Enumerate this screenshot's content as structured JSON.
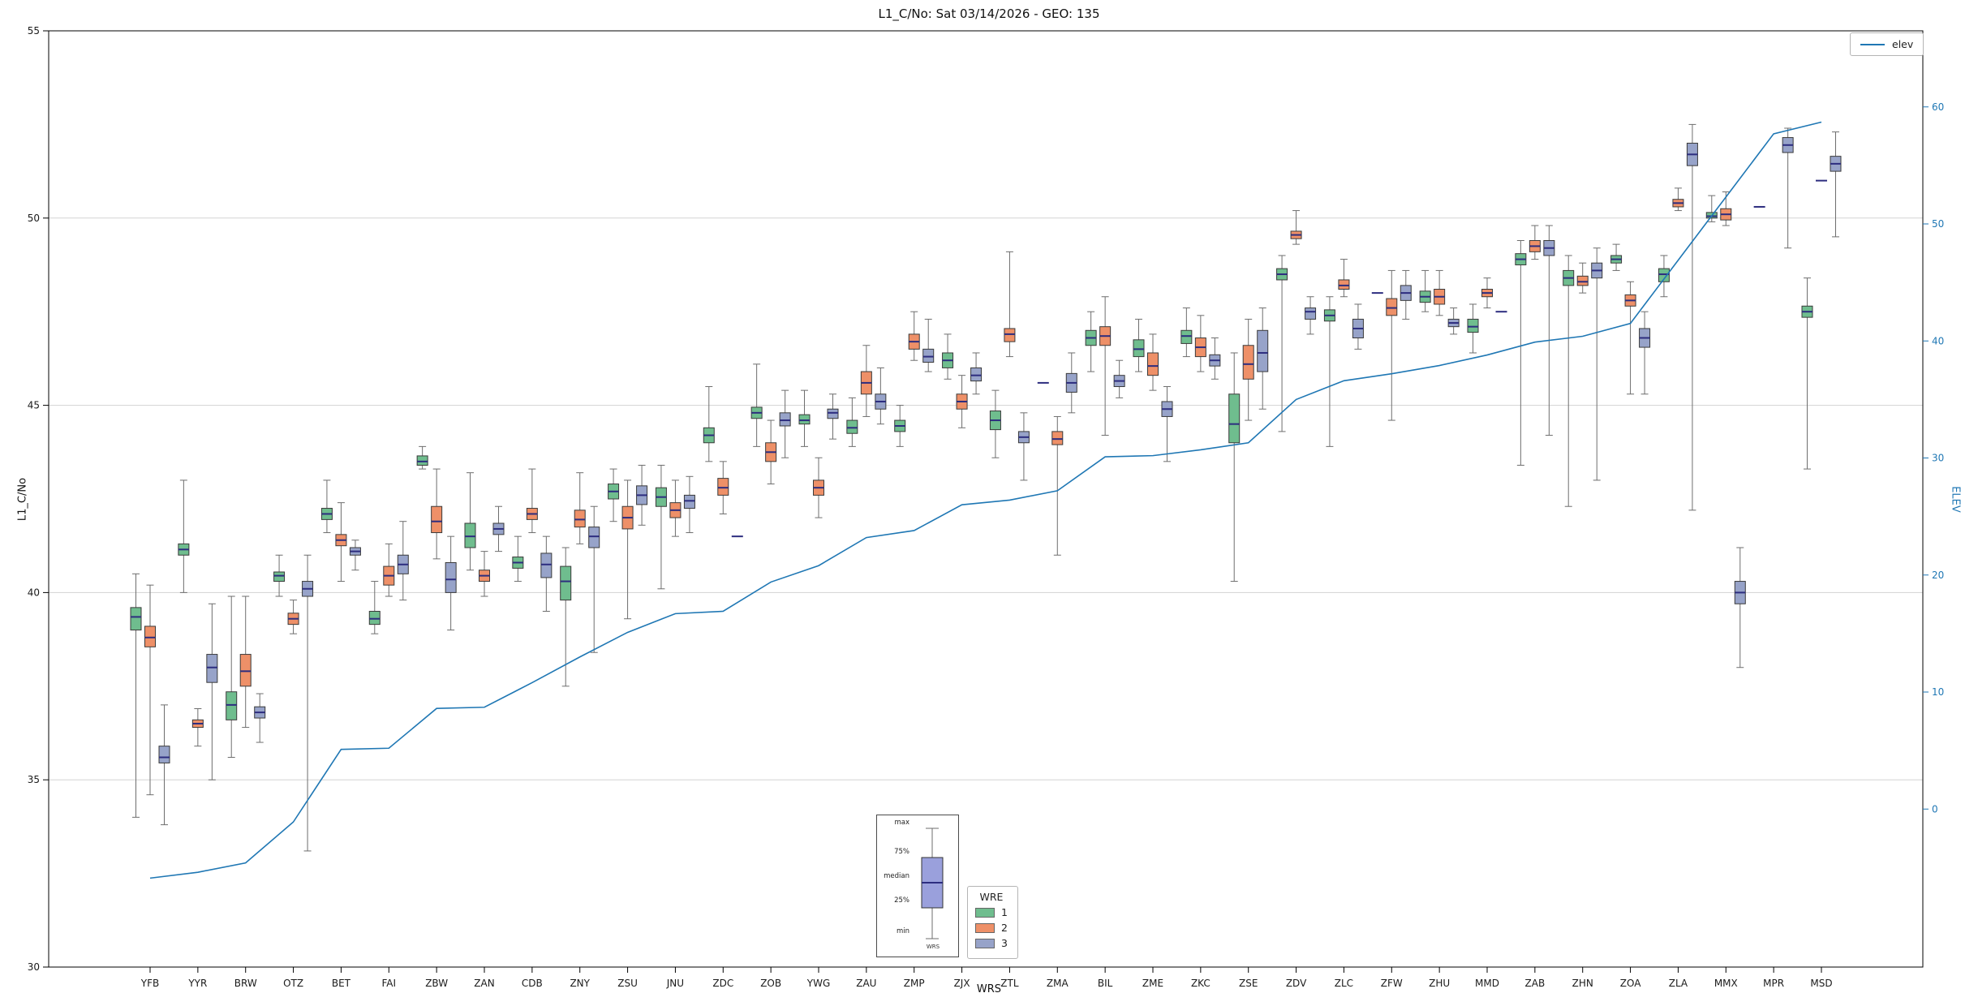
{
  "chart_data": {
    "type": "boxplot+line",
    "title": "L1_C/No: Sat 03/14/2026 - GEO: 135",
    "xlabel": "WRS",
    "ylabel_left": "L1_C/No",
    "ylabel_right": "ELEV",
    "ylim_left": [
      30,
      55
    ],
    "ylim_right": [
      -13.5,
      66.5
    ],
    "yticks_left": [
      30,
      35,
      40,
      45,
      50,
      55
    ],
    "yticks_right": [
      0,
      10,
      20,
      30,
      40,
      50,
      60
    ],
    "grid": "horizontal",
    "line_legend_label": "elev",
    "legend_title": "WRE",
    "elev_color": "#1f77b4",
    "median_color": "#2d2d7f",
    "whisker_color": "#6e6e6e",
    "box_edge_color": "#3a3a3a",
    "groups": [
      {
        "name": "1",
        "color": "#6fbd8e"
      },
      {
        "name": "2",
        "color": "#ee9068"
      },
      {
        "name": "3",
        "color": "#97a3c9"
      }
    ],
    "stations": [
      {
        "name": "YFB",
        "elev": -5.9,
        "boxes": [
          [
            34.0,
            39.0,
            39.35,
            39.6,
            40.5
          ],
          [
            34.6,
            38.55,
            38.8,
            39.1,
            40.2
          ],
          [
            33.8,
            35.45,
            35.6,
            35.9,
            37.0
          ]
        ]
      },
      {
        "name": "YYR",
        "elev": -5.4,
        "boxes": [
          [
            40.0,
            41.0,
            41.15,
            41.3,
            43.0
          ],
          [
            35.9,
            36.4,
            36.5,
            36.6,
            36.9
          ],
          [
            35.0,
            37.6,
            38.0,
            38.35,
            39.7
          ]
        ]
      },
      {
        "name": "BRW",
        "elev": -4.6,
        "boxes": [
          [
            35.6,
            36.6,
            37.0,
            37.35,
            39.9
          ],
          [
            36.4,
            37.5,
            37.9,
            38.35,
            39.9
          ],
          [
            36.0,
            36.65,
            36.8,
            36.95,
            37.3
          ]
        ]
      },
      {
        "name": "OTZ",
        "elev": -1.1,
        "boxes": [
          [
            39.9,
            40.3,
            40.45,
            40.55,
            41.0
          ],
          [
            38.9,
            39.15,
            39.3,
            39.45,
            39.8
          ],
          [
            33.1,
            39.9,
            40.1,
            40.3,
            41.0
          ]
        ]
      },
      {
        "name": "BET",
        "elev": 5.1,
        "boxes": [
          [
            41.6,
            41.95,
            42.1,
            42.25,
            43.0
          ],
          [
            40.3,
            41.25,
            41.4,
            41.55,
            42.4
          ],
          [
            40.6,
            41.0,
            41.1,
            41.2,
            41.4
          ]
        ]
      },
      {
        "name": "FAI",
        "elev": 5.2,
        "boxes": [
          [
            38.9,
            39.15,
            39.3,
            39.5,
            40.3
          ],
          [
            39.9,
            40.2,
            40.45,
            40.7,
            41.3
          ],
          [
            39.8,
            40.5,
            40.75,
            41.0,
            41.9
          ]
        ]
      },
      {
        "name": "ZBW",
        "elev": 8.6,
        "boxes": [
          [
            43.3,
            43.4,
            43.5,
            43.65,
            43.9
          ],
          [
            40.9,
            41.6,
            41.9,
            42.3,
            43.3
          ],
          [
            39.0,
            40.0,
            40.35,
            40.8,
            41.5
          ]
        ]
      },
      {
        "name": "ZAN",
        "elev": 8.7,
        "boxes": [
          [
            40.6,
            41.2,
            41.5,
            41.85,
            43.2
          ],
          [
            39.9,
            40.3,
            40.45,
            40.6,
            41.1
          ],
          [
            41.1,
            41.55,
            41.7,
            41.85,
            42.3
          ]
        ]
      },
      {
        "name": "CDB",
        "elev": 10.8,
        "boxes": [
          [
            40.3,
            40.65,
            40.8,
            40.95,
            41.5
          ],
          [
            41.6,
            41.95,
            42.1,
            42.25,
            43.3
          ],
          [
            39.5,
            40.4,
            40.75,
            41.05,
            41.5
          ]
        ]
      },
      {
        "name": "ZNY",
        "elev": 13.0,
        "boxes": [
          [
            37.5,
            39.8,
            40.3,
            40.7,
            41.2
          ],
          [
            41.3,
            41.75,
            41.95,
            42.2,
            43.2
          ],
          [
            38.4,
            41.2,
            41.5,
            41.75,
            42.3
          ]
        ]
      },
      {
        "name": "ZSU",
        "elev": 15.1,
        "boxes": [
          [
            41.9,
            42.5,
            42.7,
            42.9,
            43.3
          ],
          [
            39.3,
            41.7,
            42.0,
            42.3,
            43.0
          ],
          [
            41.8,
            42.35,
            42.6,
            42.85,
            43.4
          ]
        ]
      },
      {
        "name": "JNU",
        "elev": 16.7,
        "boxes": [
          [
            40.1,
            42.3,
            42.55,
            42.8,
            43.4
          ],
          [
            41.5,
            42.0,
            42.2,
            42.4,
            43.0
          ],
          [
            41.6,
            42.25,
            42.45,
            42.6,
            43.1
          ]
        ]
      },
      {
        "name": "ZDC",
        "elev": 16.9,
        "boxes": [
          [
            43.5,
            44.0,
            44.2,
            44.4,
            45.5
          ],
          [
            42.1,
            42.6,
            42.8,
            43.05,
            43.5
          ],
          [
            41.5,
            41.5,
            41.5,
            41.5,
            41.5
          ]
        ]
      },
      {
        "name": "ZOB",
        "elev": 19.4,
        "boxes": [
          [
            43.9,
            44.65,
            44.8,
            44.95,
            46.1
          ],
          [
            42.9,
            43.5,
            43.75,
            44.0,
            44.6
          ],
          [
            43.6,
            44.45,
            44.6,
            44.8,
            45.4
          ]
        ]
      },
      {
        "name": "YWG",
        "elev": 20.8,
        "boxes": [
          [
            43.9,
            44.5,
            44.6,
            44.75,
            45.4
          ],
          [
            42.0,
            42.6,
            42.8,
            43.0,
            43.6
          ],
          [
            44.1,
            44.65,
            44.8,
            44.9,
            45.3
          ]
        ]
      },
      {
        "name": "ZAU",
        "elev": 23.2,
        "boxes": [
          [
            43.9,
            44.25,
            44.4,
            44.6,
            45.2
          ],
          [
            44.7,
            45.3,
            45.6,
            45.9,
            46.6
          ],
          [
            44.5,
            44.9,
            45.1,
            45.3,
            46.0
          ]
        ]
      },
      {
        "name": "ZMP",
        "elev": 23.8,
        "boxes": [
          [
            43.9,
            44.3,
            44.45,
            44.6,
            45.0
          ],
          [
            46.2,
            46.5,
            46.7,
            46.9,
            47.5
          ],
          [
            45.9,
            46.15,
            46.3,
            46.5,
            47.3
          ]
        ]
      },
      {
        "name": "ZJX",
        "elev": 26.0,
        "boxes": [
          [
            45.7,
            46.0,
            46.2,
            46.4,
            46.9
          ],
          [
            44.4,
            44.9,
            45.1,
            45.3,
            45.8
          ],
          [
            45.3,
            45.65,
            45.8,
            46.0,
            46.4
          ]
        ]
      },
      {
        "name": "ZTL",
        "elev": 26.4,
        "boxes": [
          [
            43.6,
            44.35,
            44.6,
            44.85,
            45.4
          ],
          [
            46.3,
            46.7,
            46.9,
            47.05,
            49.1
          ],
          [
            43.0,
            44.0,
            44.15,
            44.3,
            44.8
          ]
        ]
      },
      {
        "name": "ZMA",
        "elev": 27.2,
        "boxes": [
          [
            45.6,
            45.6,
            45.6,
            45.6,
            45.6
          ],
          [
            41.0,
            43.95,
            44.1,
            44.3,
            44.7
          ],
          [
            44.8,
            45.35,
            45.6,
            45.85,
            46.4
          ]
        ]
      },
      {
        "name": "BIL",
        "elev": 30.1,
        "boxes": [
          [
            45.9,
            46.6,
            46.8,
            47.0,
            47.5
          ],
          [
            44.2,
            46.6,
            46.85,
            47.1,
            47.9
          ],
          [
            45.2,
            45.5,
            45.65,
            45.8,
            46.2
          ]
        ]
      },
      {
        "name": "ZME",
        "elev": 30.2,
        "boxes": [
          [
            45.9,
            46.3,
            46.5,
            46.75,
            47.3
          ],
          [
            45.4,
            45.8,
            46.05,
            46.4,
            46.9
          ],
          [
            43.5,
            44.7,
            44.9,
            45.1,
            45.5
          ]
        ]
      },
      {
        "name": "ZKC",
        "elev": 30.7,
        "boxes": [
          [
            46.3,
            46.65,
            46.85,
            47.0,
            47.6
          ],
          [
            45.9,
            46.3,
            46.55,
            46.8,
            47.4
          ],
          [
            45.7,
            46.05,
            46.2,
            46.35,
            46.8
          ]
        ]
      },
      {
        "name": "ZSE",
        "elev": 31.3,
        "boxes": [
          [
            40.3,
            44.0,
            44.5,
            45.3,
            46.4
          ],
          [
            44.6,
            45.7,
            46.1,
            46.6,
            47.3
          ],
          [
            44.9,
            45.9,
            46.4,
            47.0,
            47.6
          ]
        ]
      },
      {
        "name": "ZDV",
        "elev": 35.0,
        "boxes": [
          [
            44.3,
            48.35,
            48.5,
            48.65,
            49.0
          ],
          [
            49.3,
            49.45,
            49.55,
            49.65,
            50.2
          ],
          [
            46.9,
            47.3,
            47.5,
            47.6,
            47.9
          ]
        ]
      },
      {
        "name": "ZLC",
        "elev": 36.6,
        "boxes": [
          [
            43.9,
            47.25,
            47.4,
            47.55,
            47.9
          ],
          [
            47.9,
            48.1,
            48.2,
            48.35,
            48.9
          ],
          [
            46.5,
            46.8,
            47.05,
            47.3,
            47.7
          ]
        ]
      },
      {
        "name": "ZFW",
        "elev": 37.2,
        "boxes": [
          [
            48.0,
            48.0,
            48.0,
            48.0,
            48.0
          ],
          [
            44.6,
            47.4,
            47.6,
            47.85,
            48.6
          ],
          [
            47.3,
            47.8,
            48.0,
            48.2,
            48.6
          ]
        ]
      },
      {
        "name": "ZHU",
        "elev": 37.9,
        "boxes": [
          [
            47.5,
            47.75,
            47.9,
            48.05,
            48.6
          ],
          [
            47.4,
            47.7,
            47.9,
            48.1,
            48.6
          ],
          [
            46.9,
            47.1,
            47.2,
            47.3,
            47.6
          ]
        ]
      },
      {
        "name": "MMD",
        "elev": 38.8,
        "boxes": [
          [
            46.4,
            46.95,
            47.1,
            47.3,
            47.7
          ],
          [
            47.6,
            47.9,
            48.0,
            48.1,
            48.4
          ],
          [
            47.5,
            47.5,
            47.5,
            47.5,
            47.5
          ]
        ]
      },
      {
        "name": "ZAB",
        "elev": 39.9,
        "boxes": [
          [
            43.4,
            48.75,
            48.9,
            49.05,
            49.4
          ],
          [
            48.9,
            49.1,
            49.25,
            49.4,
            49.8
          ],
          [
            44.2,
            49.0,
            49.2,
            49.4,
            49.8
          ]
        ]
      },
      {
        "name": "ZHN",
        "elev": 40.4,
        "boxes": [
          [
            42.3,
            48.2,
            48.4,
            48.6,
            49.0
          ],
          [
            48.0,
            48.2,
            48.3,
            48.45,
            48.8
          ],
          [
            43.0,
            48.4,
            48.6,
            48.8,
            49.2
          ]
        ]
      },
      {
        "name": "ZOA",
        "elev": 41.5,
        "boxes": [
          [
            48.6,
            48.8,
            48.9,
            49.0,
            49.3
          ],
          [
            45.3,
            47.65,
            47.8,
            47.95,
            48.3
          ],
          [
            45.3,
            46.55,
            46.8,
            47.05,
            47.5
          ]
        ]
      },
      {
        "name": "ZLA",
        "elev": 46.9,
        "boxes": [
          [
            47.9,
            48.3,
            48.5,
            48.65,
            49.0
          ],
          [
            50.2,
            50.3,
            50.4,
            50.5,
            50.8
          ],
          [
            42.2,
            51.4,
            51.7,
            52.0,
            52.5
          ]
        ]
      },
      {
        "name": "MMX",
        "elev": 52.3,
        "boxes": [
          [
            49.9,
            50.0,
            50.05,
            50.15,
            50.6
          ],
          [
            49.8,
            49.95,
            50.1,
            50.25,
            50.7
          ],
          [
            38.0,
            39.7,
            40.0,
            40.3,
            41.2
          ]
        ]
      },
      {
        "name": "MPR",
        "elev": 57.7,
        "boxes": [
          [
            50.3,
            50.3,
            50.3,
            50.3,
            50.3
          ],
          null,
          [
            49.2,
            51.75,
            51.95,
            52.15,
            52.4
          ]
        ]
      },
      {
        "name": "MSD",
        "elev": 58.7,
        "boxes": [
          [
            43.3,
            47.35,
            47.5,
            47.65,
            48.4
          ],
          [
            51.0,
            51.0,
            51.0,
            51.0,
            51.0
          ],
          [
            49.5,
            51.25,
            51.45,
            51.65,
            52.3
          ]
        ]
      }
    ]
  },
  "inset": {
    "max": "max",
    "p75": "75%",
    "median": "median",
    "p25": "25%",
    "min": "min",
    "caption": "WRS",
    "box_color": "#9aa0dc"
  }
}
